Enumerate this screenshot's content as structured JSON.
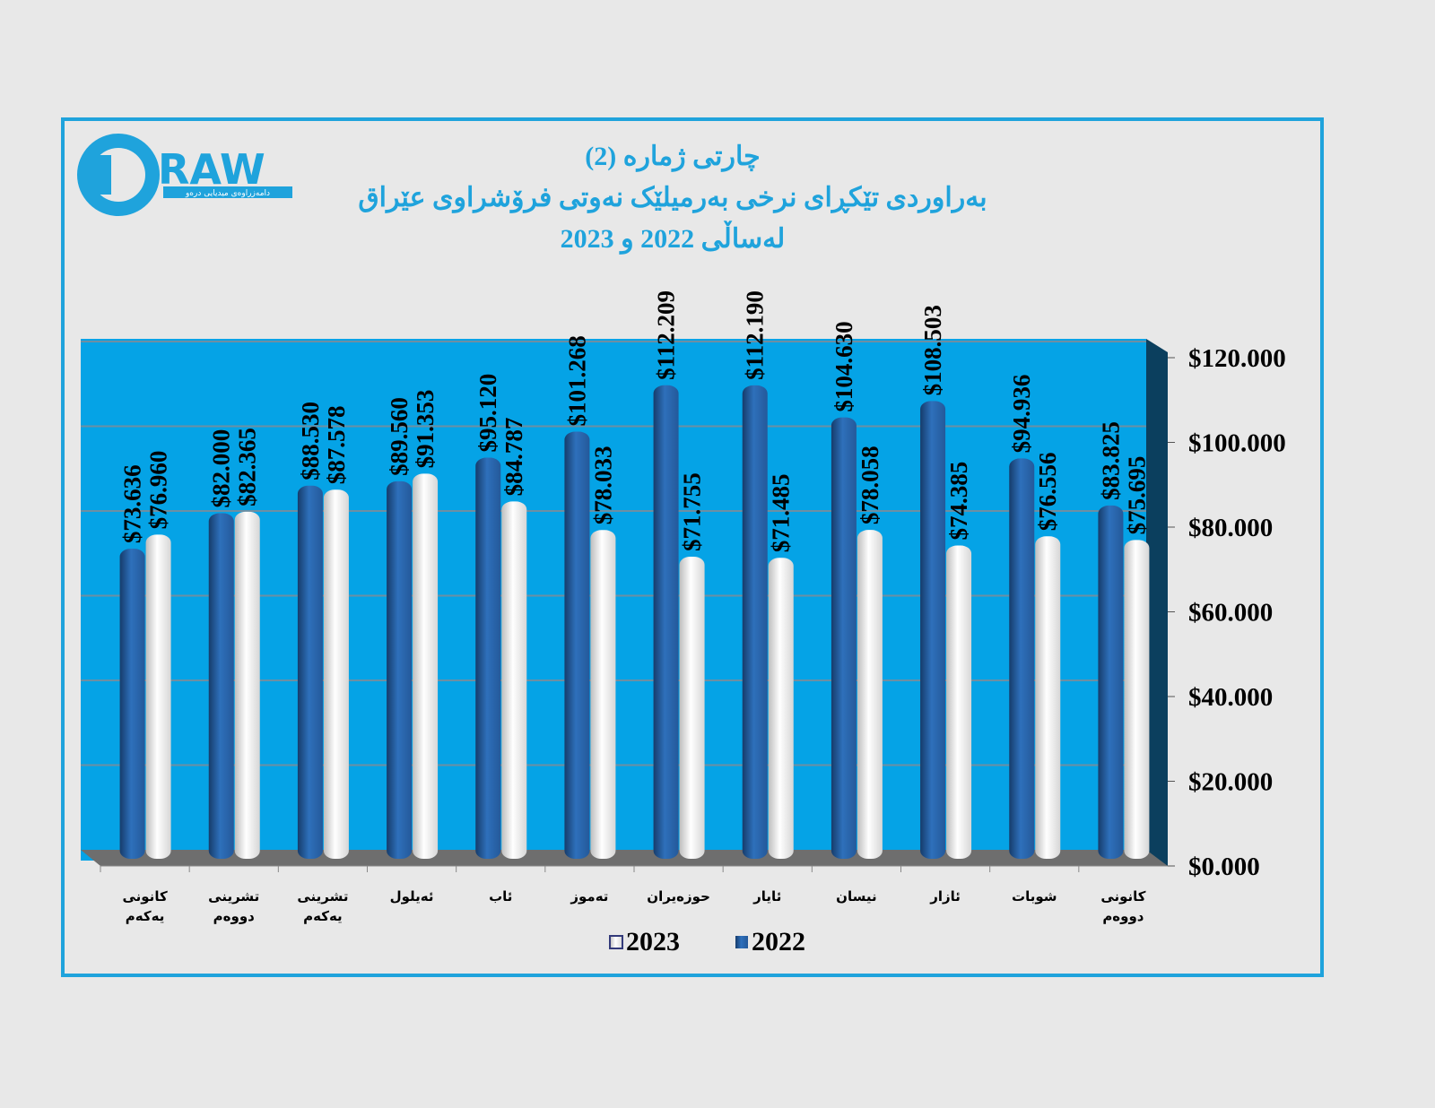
{
  "logo": {
    "text": "DRAW",
    "subtitle": "دامەزراوەی میدیایی درەو"
  },
  "title": {
    "line1": "چارتی ژمارە (2)",
    "line2": "بەراوردی تێکڕای نرخی بەرمیلێک نەوتی فرۆشراوی عێراق",
    "line3": "لەساڵی 2022 و 2023"
  },
  "colors": {
    "frame": "#1fa3dc",
    "wall": "#05a3e6",
    "bar2022": "#2b6cb5",
    "bar2023": "#f2f2f2"
  },
  "chart_data": {
    "type": "bar",
    "title": "بەراوردی تێکڕای نرخی بەرمیلێک نەوتی فرۆشراوی عێراق لە ساڵی 2022 و 2023",
    "categories": [
      [
        "کانونی",
        "یەکەم"
      ],
      [
        "تشرینی",
        "دووەم"
      ],
      [
        "تشرینی",
        "یەکەم"
      ],
      [
        "ئەیلول"
      ],
      [
        "ئاب"
      ],
      [
        "تەموز"
      ],
      [
        "حوزەیران"
      ],
      [
        "ئایار"
      ],
      [
        "نیسان"
      ],
      [
        "ئازار"
      ],
      [
        "شوبات"
      ],
      [
        "کانونی",
        "دووەم"
      ]
    ],
    "series": [
      {
        "name": "2022",
        "values": [
          73.636,
          82.0,
          88.53,
          89.56,
          95.12,
          101.268,
          112.209,
          112.19,
          104.63,
          108.503,
          94.936,
          83.825
        ],
        "labels": [
          "$73.636",
          "$82.000",
          "$88.530",
          "$89.560",
          "$95.120",
          "$101.268",
          "$112.209",
          "$112.190",
          "$104.630",
          "$108.503",
          "$94.936",
          "$83.825"
        ]
      },
      {
        "name": "2023",
        "values": [
          76.96,
          82.365,
          87.578,
          91.353,
          84.787,
          78.033,
          71.755,
          71.485,
          78.058,
          74.385,
          76.556,
          75.695
        ],
        "labels": [
          "$76.960",
          "$82.365",
          "$87.578",
          "$91.353",
          "$84.787",
          "$78.033",
          "$71.755",
          "$71.485",
          "$78.058",
          "$74.385",
          "$76.556",
          "$75.695"
        ]
      }
    ],
    "ylim": [
      0,
      120
    ],
    "yticks": [
      0,
      20,
      40,
      60,
      80,
      100,
      120
    ],
    "ytick_labels": [
      "$0.000",
      "$20.000",
      "$40.000",
      "$60.000",
      "$80.000",
      "$100.000",
      "$120.000"
    ],
    "legend": {
      "placement": "bottom",
      "entries": [
        "2023",
        "2022"
      ]
    },
    "grid": true
  }
}
